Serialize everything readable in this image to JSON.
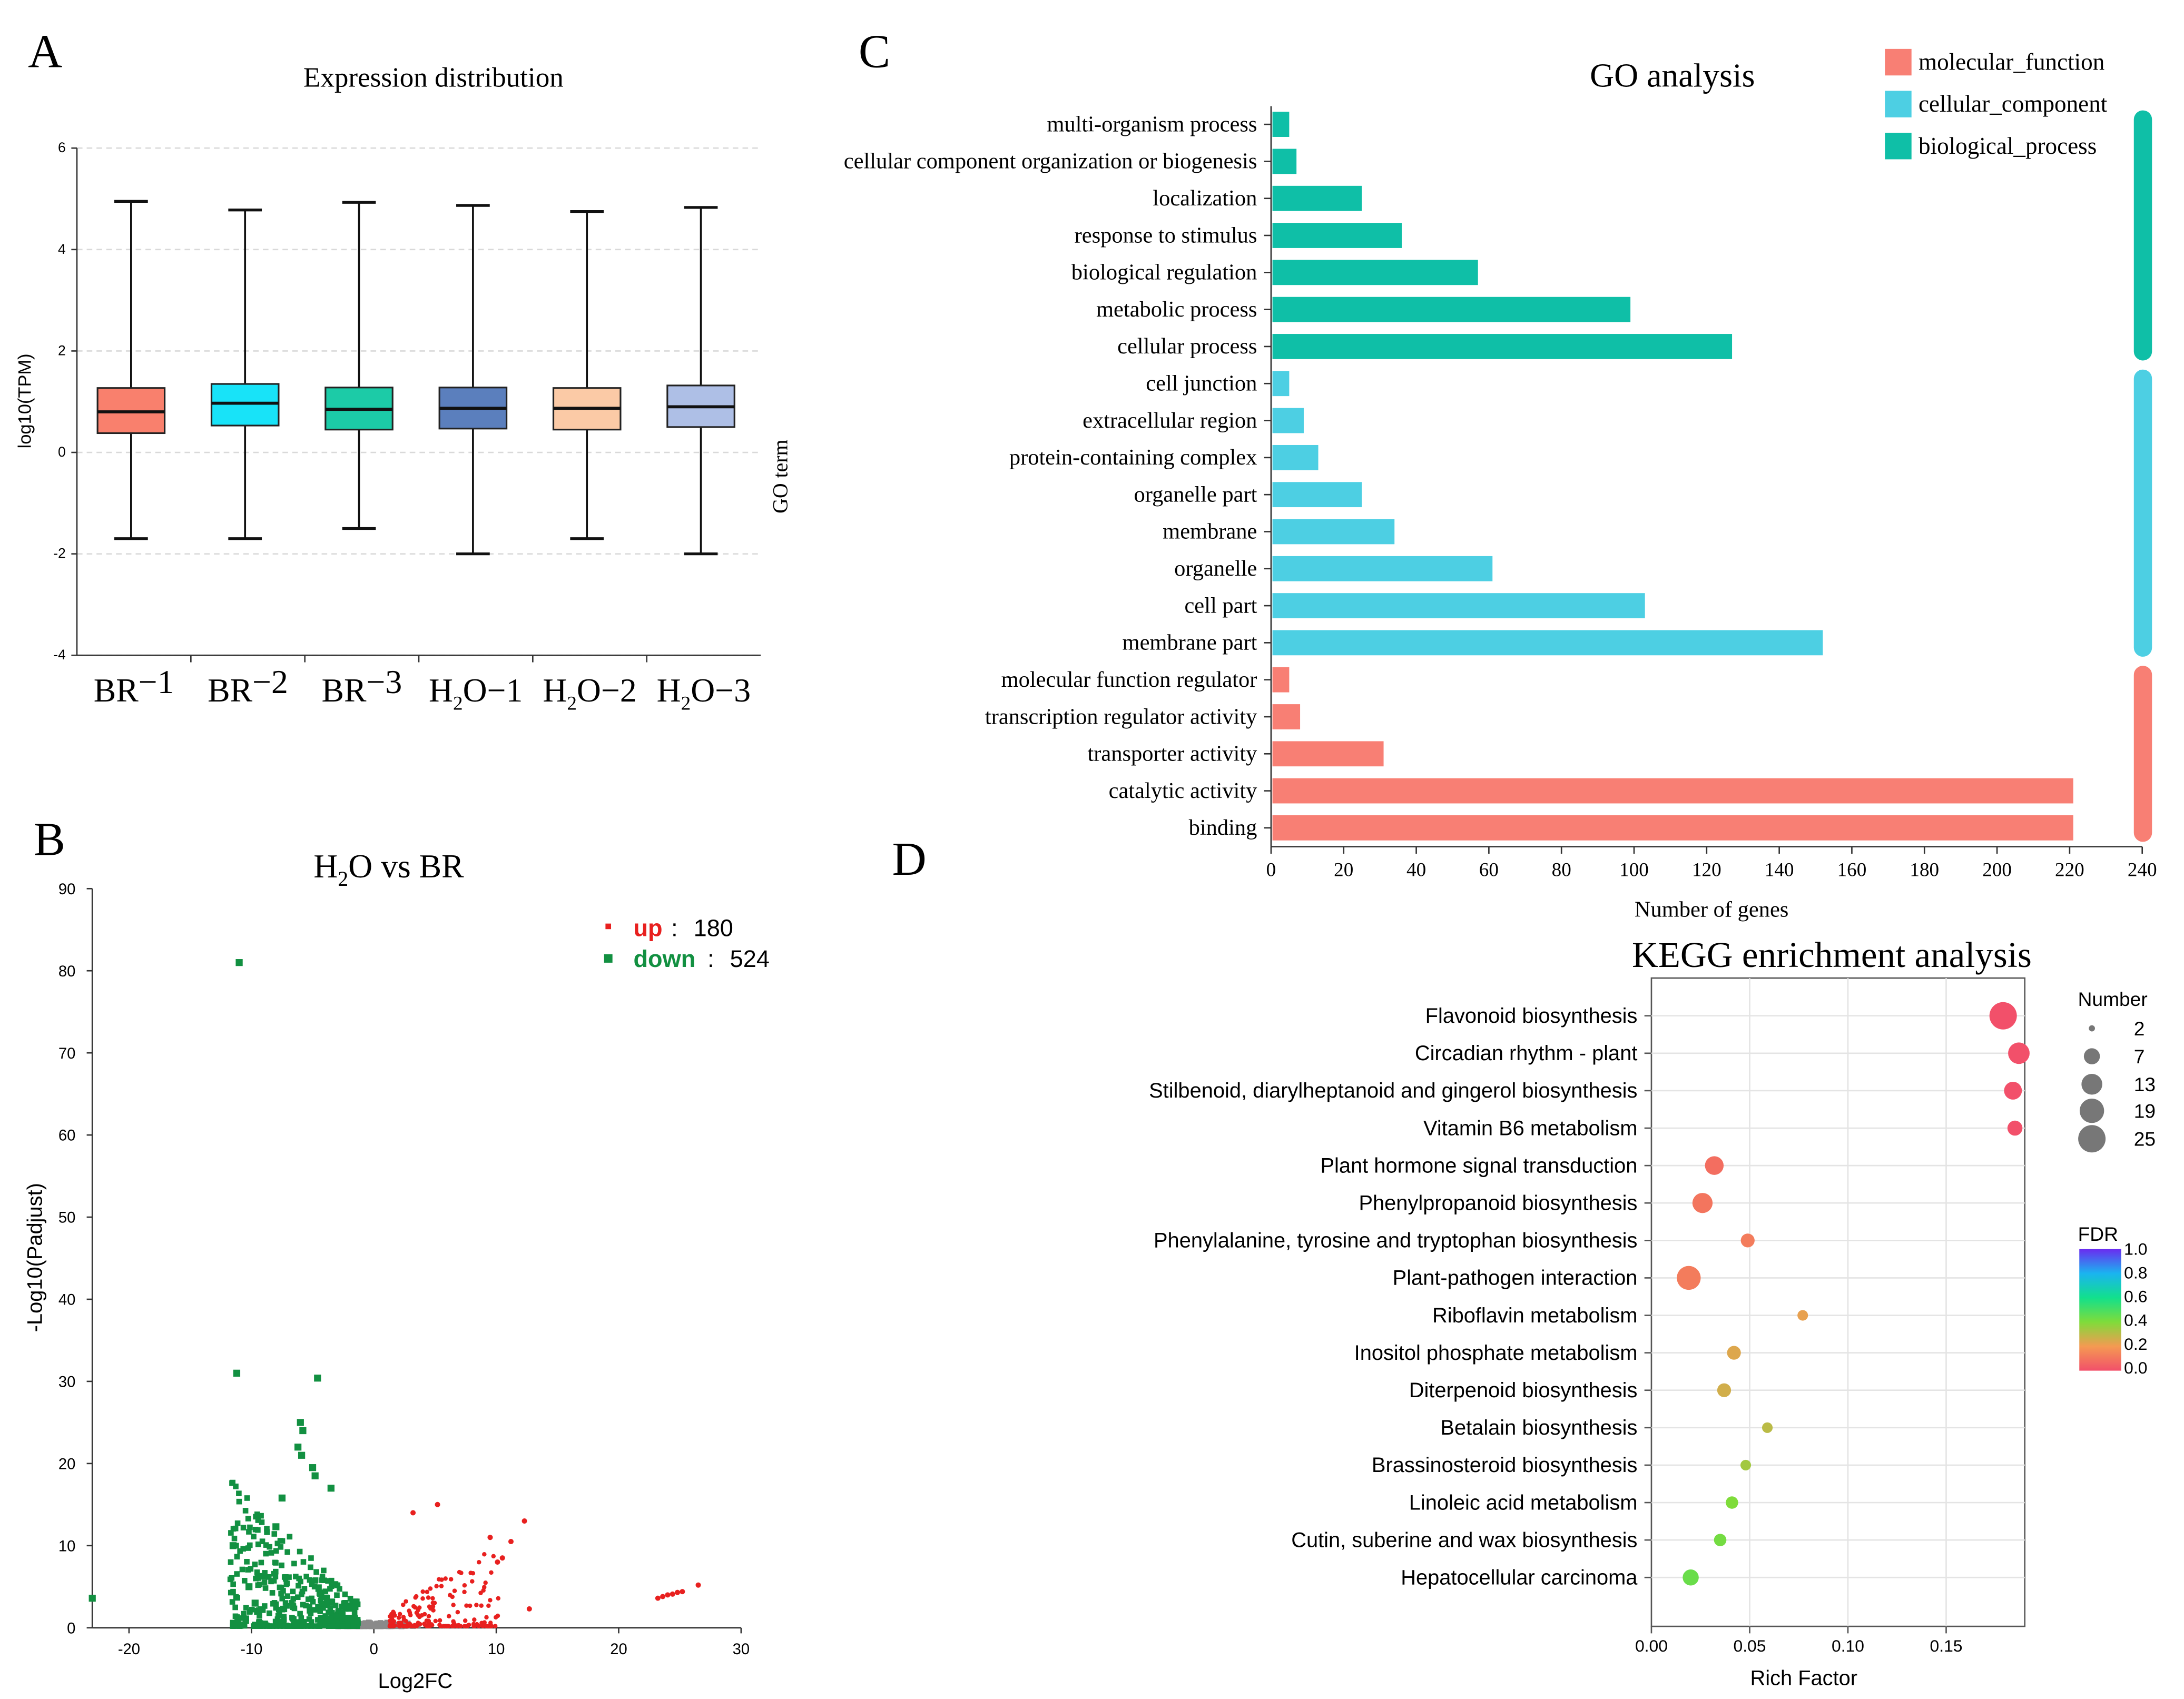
{
  "panel_letters": [
    "A",
    "B",
    "C",
    "D"
  ],
  "colors": {
    "molecular_function": "#f87f74",
    "cellular_component": "#4dcfe3",
    "biological_process": "#0fbfa7",
    "up": "#e8201f",
    "down": "#129041",
    "ns": "#8a8a8a",
    "box_fills": [
      "#f9806d",
      "#18e3f8",
      "#1ccba7",
      "#5b7fbd",
      "#fbcaa6",
      "#aebfe6"
    ]
  },
  "chart_data": [
    {
      "id": "A",
      "type": "box",
      "title": "Expression distribution",
      "xlabel": "",
      "ylabel": "log10(TPM)",
      "ylim": [
        -4,
        6
      ],
      "yticks": [
        "-4",
        "-2",
        "0",
        "2",
        "4",
        "6"
      ],
      "categories": [
        {
          "base": "BR",
          "sub": "",
          "tail": "−1"
        },
        {
          "base": "BR",
          "sub": "",
          "tail": "−2"
        },
        {
          "base": "BR",
          "sub": "",
          "tail": "−3"
        },
        {
          "base": "H",
          "sub": "2",
          "tail": "O−1"
        },
        {
          "base": "H",
          "sub": "2",
          "tail": "O−2"
        },
        {
          "base": "H",
          "sub": "2",
          "tail": "O−3"
        }
      ],
      "boxes": [
        {
          "min": -1.7,
          "q1": 0.38,
          "median": 0.8,
          "q3": 1.27,
          "max": 4.95
        },
        {
          "min": -1.7,
          "q1": 0.53,
          "median": 0.97,
          "q3": 1.35,
          "max": 4.78
        },
        {
          "min": -1.5,
          "q1": 0.45,
          "median": 0.85,
          "q3": 1.28,
          "max": 4.93
        },
        {
          "min": -2.0,
          "q1": 0.47,
          "median": 0.87,
          "q3": 1.28,
          "max": 4.87
        },
        {
          "min": -1.7,
          "q1": 0.45,
          "median": 0.87,
          "q3": 1.27,
          "max": 4.75
        },
        {
          "min": -2.0,
          "q1": 0.5,
          "median": 0.9,
          "q3": 1.32,
          "max": 4.83
        }
      ]
    },
    {
      "id": "B",
      "type": "scatter",
      "title": {
        "base": "H",
        "sub": "2",
        "tail": "O vs BR"
      },
      "xlabel": "Log2FC",
      "ylabel": "-Log10(Padjust)",
      "xlim": [
        -23,
        30
      ],
      "ylim": [
        0,
        90
      ],
      "xticks": [
        "-20",
        "-10",
        "0",
        "10",
        "20",
        "30"
      ],
      "yticks": [
        "0",
        "10",
        "20",
        "30",
        "40",
        "50",
        "60",
        "70",
        "80",
        "90"
      ],
      "legend": [
        {
          "label": "up",
          "sep": ":",
          "count": "180"
        },
        {
          "label": "down",
          "sep": ":",
          "count": "524"
        }
      ],
      "highlights": {
        "down": [
          [
            -11,
            81
          ],
          [
            -11.2,
            31
          ],
          [
            -4.6,
            30.4
          ],
          [
            -23,
            3.6
          ],
          [
            -6,
            25
          ],
          [
            -5.8,
            24
          ],
          [
            -6.2,
            22
          ],
          [
            -5.9,
            21
          ],
          [
            -5,
            19.5
          ],
          [
            -4.8,
            18.5
          ],
          [
            -3.5,
            17
          ],
          [
            -9.5,
            2
          ],
          [
            -9.7,
            3
          ],
          [
            -10.2,
            5
          ],
          [
            -11.5,
            10
          ],
          [
            -8,
            12.3
          ],
          [
            -7.5,
            15.8
          ]
        ],
        "up": [
          [
            23.2,
            3.6
          ],
          [
            23.6,
            3.8
          ],
          [
            24,
            4
          ],
          [
            24.4,
            4.1
          ],
          [
            24.8,
            4.3
          ],
          [
            25.2,
            4.4
          ],
          [
            26.5,
            5.2
          ],
          [
            12.3,
            13
          ],
          [
            11.2,
            10.5
          ],
          [
            10.5,
            8.5
          ],
          [
            12.7,
            2.3
          ],
          [
            3.2,
            14
          ],
          [
            5.2,
            15
          ],
          [
            9.5,
            11
          ],
          [
            10.1,
            8
          ]
        ]
      }
    },
    {
      "id": "C",
      "type": "bar",
      "orientation": "horizontal",
      "title": "GO analysis",
      "xlabel": "Number of genes",
      "ylabel": "GO term",
      "xlim": [
        0,
        240
      ],
      "xticks": [
        "0",
        "20",
        "40",
        "60",
        "80",
        "100",
        "120",
        "140",
        "160",
        "180",
        "200",
        "220",
        "240"
      ],
      "legend": [
        "molecular_function",
        "cellular_component",
        "biological_process"
      ],
      "categories": [
        "multi-organism process",
        "cellular component organization or biogenesis",
        "localization",
        "response to stimulus",
        "biological regulation",
        "metabolic process",
        "cellular process",
        "cell junction",
        "extracellular region",
        "protein-containing complex",
        "organelle part",
        "membrane",
        "organelle",
        "cell part",
        "membrane part",
        "molecular function regulator",
        "transcription regulator activity",
        "transporter activity",
        "catalytic activity",
        "binding"
      ],
      "values": [
        5,
        7,
        25,
        36,
        57,
        99,
        127,
        5,
        9,
        13,
        25,
        34,
        61,
        103,
        152,
        5,
        8,
        31,
        221,
        221
      ],
      "groups": [
        "biological_process",
        "biological_process",
        "biological_process",
        "biological_process",
        "biological_process",
        "biological_process",
        "biological_process",
        "cellular_component",
        "cellular_component",
        "cellular_component",
        "cellular_component",
        "cellular_component",
        "cellular_component",
        "cellular_component",
        "cellular_component",
        "molecular_function",
        "molecular_function",
        "molecular_function",
        "molecular_function",
        "molecular_function"
      ]
    },
    {
      "id": "D",
      "type": "scatter",
      "title": "KEGG enrichment analysis",
      "xlabel": "Rich Factor",
      "ylabel": "",
      "xlim": [
        0,
        0.19
      ],
      "xticks": [
        {
          "v": 0,
          "label": "0.00"
        },
        {
          "v": 0.05,
          "label": "0.05"
        },
        {
          "v": 0.1,
          "label": "0.10"
        },
        {
          "v": 0.15,
          "label": "0.15"
        }
      ],
      "categories": [
        "Flavonoid biosynthesis",
        "Circadian rhythm - plant",
        "Stilbenoid, diarylheptanoid and gingerol biosynthesis",
        "Vitamin B6 metabolism",
        "Plant hormone signal transduction",
        "Phenylpropanoid biosynthesis",
        "Phenylalanine, tyrosine and tryptophan biosynthesis",
        "Plant-pathogen interaction",
        "Riboflavin metabolism",
        "Inositol phosphate metabolism",
        "Diterpenoid biosynthesis",
        "Betalain biosynthesis",
        "Brassinosteroid biosynthesis",
        "Linoleic acid metabolism",
        "Cutin, suberine and wax biosynthesis",
        "Hepatocellular carcinoma"
      ],
      "points": [
        {
          "rich": 0.179,
          "number": 25,
          "fdr": 0.0
        },
        {
          "rich": 0.187,
          "number": 14,
          "fdr": 0.0
        },
        {
          "rich": 0.184,
          "number": 9,
          "fdr": 0.0
        },
        {
          "rich": 0.185,
          "number": 6,
          "fdr": 0.0
        },
        {
          "rich": 0.032,
          "number": 10,
          "fdr": 0.08
        },
        {
          "rich": 0.026,
          "number": 12,
          "fdr": 0.1
        },
        {
          "rich": 0.049,
          "number": 5,
          "fdr": 0.12
        },
        {
          "rich": 0.019,
          "number": 18,
          "fdr": 0.12
        },
        {
          "rich": 0.077,
          "number": 3,
          "fdr": 0.22
        },
        {
          "rich": 0.042,
          "number": 5,
          "fdr": 0.24
        },
        {
          "rich": 0.037,
          "number": 5,
          "fdr": 0.26
        },
        {
          "rich": 0.059,
          "number": 3,
          "fdr": 0.3
        },
        {
          "rich": 0.048,
          "number": 3,
          "fdr": 0.34
        },
        {
          "rich": 0.041,
          "number": 4,
          "fdr": 0.4
        },
        {
          "rich": 0.035,
          "number": 4,
          "fdr": 0.42
        },
        {
          "rich": 0.02,
          "number": 7,
          "fdr": 0.44
        }
      ],
      "size_legend": {
        "title": "Number",
        "values": [
          2,
          7,
          13,
          19,
          25
        ],
        "labels": [
          "2",
          "7",
          "13",
          "19",
          "25"
        ]
      },
      "color_legend": {
        "title": "FDR",
        "labels": [
          "1.0",
          "0.8",
          "0.6",
          "0.4",
          "0.2",
          "0.0"
        ]
      }
    }
  ]
}
